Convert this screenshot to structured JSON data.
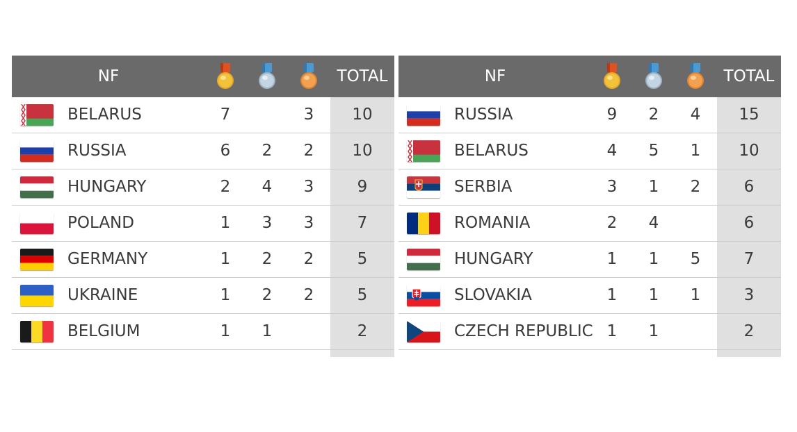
{
  "tables": [
    {
      "header": {
        "nf": "NF",
        "total": "TOTAL"
      },
      "rows": [
        {
          "flag": "belarus",
          "country": "BELARUS",
          "gold": "7",
          "silver": "",
          "bronze": "3",
          "total": "10"
        },
        {
          "flag": "russia",
          "country": "RUSSIA",
          "gold": "6",
          "silver": "2",
          "bronze": "2",
          "total": "10"
        },
        {
          "flag": "hungary",
          "country": "HUNGARY",
          "gold": "2",
          "silver": "4",
          "bronze": "3",
          "total": "9"
        },
        {
          "flag": "poland",
          "country": "POLAND",
          "gold": "1",
          "silver": "3",
          "bronze": "3",
          "total": "7"
        },
        {
          "flag": "germany",
          "country": "GERMANY",
          "gold": "1",
          "silver": "2",
          "bronze": "2",
          "total": "5"
        },
        {
          "flag": "ukraine",
          "country": "UKRAINE",
          "gold": "1",
          "silver": "2",
          "bronze": "2",
          "total": "5"
        },
        {
          "flag": "belgium",
          "country": "BELGIUM",
          "gold": "1",
          "silver": "1",
          "bronze": "",
          "total": "2"
        }
      ]
    },
    {
      "header": {
        "nf": "NF",
        "total": "TOTAL"
      },
      "rows": [
        {
          "flag": "russia",
          "country": "RUSSIA",
          "gold": "9",
          "silver": "2",
          "bronze": "4",
          "total": "15"
        },
        {
          "flag": "belarus",
          "country": "BELARUS",
          "gold": "4",
          "silver": "5",
          "bronze": "1",
          "total": "10"
        },
        {
          "flag": "serbia",
          "country": "SERBIA",
          "gold": "3",
          "silver": "1",
          "bronze": "2",
          "total": "6"
        },
        {
          "flag": "romania",
          "country": "ROMANIA",
          "gold": "2",
          "silver": "4",
          "bronze": "",
          "total": "6"
        },
        {
          "flag": "hungary",
          "country": "HUNGARY",
          "gold": "1",
          "silver": "1",
          "bronze": "5",
          "total": "7"
        },
        {
          "flag": "slovakia",
          "country": "SLOVAKIA",
          "gold": "1",
          "silver": "1",
          "bronze": "1",
          "total": "3"
        },
        {
          "flag": "czech-republic",
          "country": "CZECH REPUBLIC",
          "gold": "1",
          "silver": "1",
          "bronze": "",
          "total": "2"
        }
      ]
    }
  ],
  "medal_colors": {
    "gold": "#f2c23a",
    "silver": "#c3d4e2",
    "bronze": "#f3a04f",
    "gold_ribbon": "#e0521f",
    "silver_ribbon": "#4a9ad6",
    "bronze_ribbon": "#4a9ad6"
  },
  "colors": {
    "header_bg": "#6a6a6a",
    "total_col_bg": "#e0e0e0",
    "row_border": "#cccccc"
  }
}
